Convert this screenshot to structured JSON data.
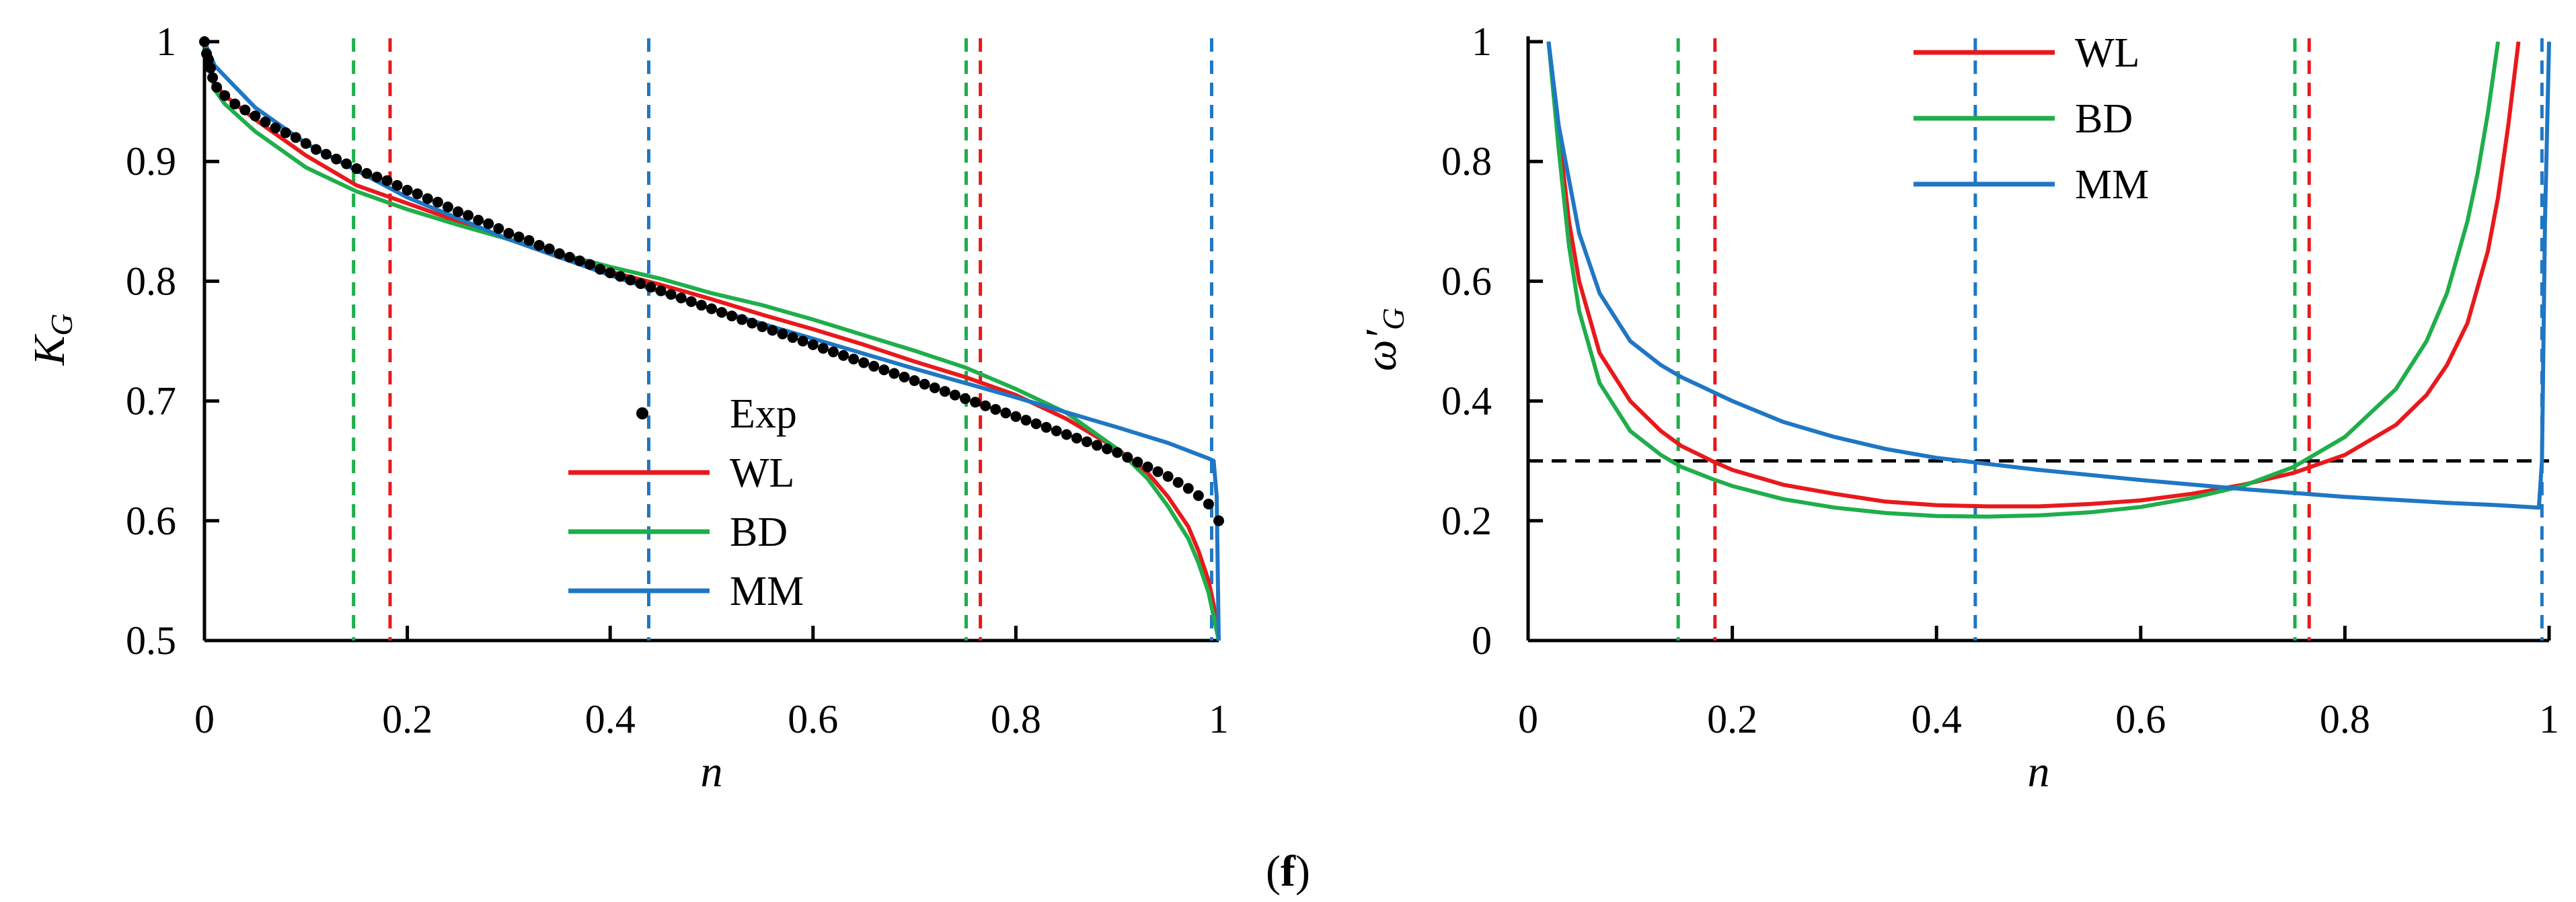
{
  "chart_data": [
    {
      "id": "left",
      "type": "line",
      "xlabel": "n",
      "ylabel": "K",
      "ylabel_sub": "G",
      "xlim": [
        0,
        1
      ],
      "ylim": [
        0.5,
        1
      ],
      "xticks": [
        "0",
        "0.2",
        "0.4",
        "0.6",
        "0.8",
        "1"
      ],
      "yticks": [
        "0.5",
        "0.6",
        "0.7",
        "0.8",
        "0.9",
        "1"
      ],
      "legend": [
        "Exp",
        "WL",
        "BD",
        "MM"
      ],
      "series": [
        {
          "name": "WL",
          "color": "#e8191c",
          "x": [
            0,
            0.01,
            0.02,
            0.05,
            0.1,
            0.15,
            0.2,
            0.25,
            0.3,
            0.35,
            0.4,
            0.45,
            0.5,
            0.55,
            0.6,
            0.65,
            0.7,
            0.75,
            0.8,
            0.85,
            0.9,
            0.93,
            0.95,
            0.97,
            0.98,
            0.99,
            0.995,
            1.0
          ],
          "y": [
            1.0,
            0.965,
            0.955,
            0.935,
            0.905,
            0.88,
            0.865,
            0.85,
            0.835,
            0.82,
            0.808,
            0.797,
            0.785,
            0.772,
            0.76,
            0.747,
            0.733,
            0.72,
            0.705,
            0.685,
            0.66,
            0.64,
            0.62,
            0.595,
            0.575,
            0.55,
            0.53,
            0.5
          ]
        },
        {
          "name": "BD",
          "color": "#1fae4b",
          "x": [
            0,
            0.01,
            0.02,
            0.05,
            0.1,
            0.15,
            0.2,
            0.25,
            0.3,
            0.35,
            0.4,
            0.45,
            0.5,
            0.55,
            0.6,
            0.65,
            0.7,
            0.75,
            0.8,
            0.85,
            0.9,
            0.93,
            0.95,
            0.97,
            0.98,
            0.99,
            0.995,
            1.0
          ],
          "y": [
            1.0,
            0.96,
            0.948,
            0.925,
            0.895,
            0.875,
            0.86,
            0.847,
            0.835,
            0.823,
            0.812,
            0.802,
            0.79,
            0.78,
            0.768,
            0.755,
            0.742,
            0.728,
            0.71,
            0.69,
            0.66,
            0.635,
            0.612,
            0.585,
            0.565,
            0.54,
            0.52,
            0.5
          ]
        },
        {
          "name": "MM",
          "color": "#1f77c4",
          "x": [
            0,
            0.01,
            0.05,
            0.1,
            0.2,
            0.3,
            0.4,
            0.5,
            0.6,
            0.7,
            0.8,
            0.9,
            0.95,
            0.99,
            0.995,
            0.998,
            1.0
          ],
          "y": [
            1.0,
            0.98,
            0.945,
            0.915,
            0.87,
            0.835,
            0.805,
            0.777,
            0.752,
            0.727,
            0.703,
            0.678,
            0.665,
            0.652,
            0.65,
            0.62,
            0.5
          ]
        },
        {
          "name": "Exp",
          "color": "#000000",
          "marker": "dot",
          "x": [
            0,
            0.002,
            0.004,
            0.006,
            0.008,
            0.012,
            0.02,
            0.03,
            0.04,
            0.05,
            0.06,
            0.07,
            0.08,
            0.09,
            0.1,
            0.11,
            0.12,
            0.13,
            0.14,
            0.15,
            0.16,
            0.17,
            0.18,
            0.19,
            0.2,
            0.21,
            0.22,
            0.23,
            0.24,
            0.25,
            0.26,
            0.27,
            0.28,
            0.29,
            0.3,
            0.31,
            0.32,
            0.33,
            0.34,
            0.35,
            0.36,
            0.37,
            0.38,
            0.39,
            0.4,
            0.41,
            0.42,
            0.43,
            0.44,
            0.45,
            0.46,
            0.47,
            0.48,
            0.49,
            0.5,
            0.51,
            0.52,
            0.53,
            0.54,
            0.55,
            0.56,
            0.57,
            0.58,
            0.59,
            0.6,
            0.61,
            0.62,
            0.63,
            0.64,
            0.65,
            0.66,
            0.67,
            0.68,
            0.69,
            0.7,
            0.71,
            0.72,
            0.73,
            0.74,
            0.75,
            0.76,
            0.77,
            0.78,
            0.79,
            0.8,
            0.81,
            0.82,
            0.83,
            0.84,
            0.85,
            0.86,
            0.87,
            0.88,
            0.89,
            0.9,
            0.91,
            0.92,
            0.93,
            0.94,
            0.95,
            0.96,
            0.97,
            0.98,
            0.99,
            1.0
          ],
          "y": [
            1.0,
            0.99,
            0.985,
            0.978,
            0.97,
            0.962,
            0.955,
            0.948,
            0.943,
            0.938,
            0.933,
            0.928,
            0.924,
            0.92,
            0.915,
            0.91,
            0.906,
            0.902,
            0.898,
            0.894,
            0.89,
            0.887,
            0.884,
            0.88,
            0.876,
            0.873,
            0.869,
            0.866,
            0.862,
            0.858,
            0.855,
            0.851,
            0.848,
            0.844,
            0.84,
            0.837,
            0.834,
            0.83,
            0.827,
            0.823,
            0.82,
            0.817,
            0.814,
            0.81,
            0.807,
            0.804,
            0.801,
            0.798,
            0.795,
            0.792,
            0.789,
            0.786,
            0.783,
            0.78,
            0.777,
            0.774,
            0.771,
            0.768,
            0.765,
            0.762,
            0.759,
            0.756,
            0.753,
            0.75,
            0.747,
            0.744,
            0.741,
            0.738,
            0.735,
            0.732,
            0.729,
            0.726,
            0.723,
            0.72,
            0.717,
            0.714,
            0.711,
            0.708,
            0.705,
            0.702,
            0.699,
            0.696,
            0.693,
            0.69,
            0.687,
            0.684,
            0.681,
            0.678,
            0.675,
            0.672,
            0.669,
            0.666,
            0.663,
            0.66,
            0.657,
            0.653,
            0.649,
            0.645,
            0.641,
            0.637,
            0.632,
            0.627,
            0.621,
            0.614,
            0.6
          ]
        }
      ],
      "vlines": [
        {
          "x": 0.147,
          "color": "#1fae4b"
        },
        {
          "x": 0.183,
          "color": "#e8191c"
        },
        {
          "x": 0.438,
          "color": "#1f77c4"
        },
        {
          "x": 0.751,
          "color": "#1fae4b"
        },
        {
          "x": 0.765,
          "color": "#e8191c"
        },
        {
          "x": 0.993,
          "color": "#1f77c4"
        }
      ],
      "hlines": []
    },
    {
      "id": "right",
      "type": "line",
      "xlabel": "n",
      "ylabel": "ω′",
      "ylabel_sub": "G",
      "xlim": [
        0,
        1
      ],
      "ylim": [
        0,
        1
      ],
      "xticks": [
        "0",
        "0.2",
        "0.4",
        "0.6",
        "0.8",
        "1"
      ],
      "yticks": [
        "0",
        "0.2",
        "0.4",
        "0.6",
        "0.8",
        "1"
      ],
      "legend": [
        "WL",
        "BD",
        "MM"
      ],
      "series": [
        {
          "name": "WL",
          "color": "#e8191c",
          "x": [
            0.02,
            0.03,
            0.04,
            0.05,
            0.07,
            0.1,
            0.13,
            0.15,
            0.18,
            0.2,
            0.25,
            0.3,
            0.35,
            0.4,
            0.45,
            0.5,
            0.55,
            0.6,
            0.65,
            0.7,
            0.75,
            0.8,
            0.85,
            0.88,
            0.9,
            0.92,
            0.94,
            0.95,
            0.96,
            0.97
          ],
          "y": [
            1.0,
            0.85,
            0.7,
            0.6,
            0.48,
            0.4,
            0.35,
            0.325,
            0.3,
            0.285,
            0.26,
            0.245,
            0.232,
            0.226,
            0.224,
            0.224,
            0.228,
            0.234,
            0.245,
            0.26,
            0.28,
            0.31,
            0.36,
            0.41,
            0.46,
            0.53,
            0.65,
            0.74,
            0.86,
            1.0
          ]
        },
        {
          "name": "BD",
          "color": "#1fae4b",
          "x": [
            0.02,
            0.03,
            0.04,
            0.05,
            0.07,
            0.1,
            0.13,
            0.15,
            0.18,
            0.2,
            0.25,
            0.3,
            0.35,
            0.4,
            0.45,
            0.5,
            0.55,
            0.6,
            0.65,
            0.7,
            0.75,
            0.8,
            0.85,
            0.88,
            0.9,
            0.92,
            0.93,
            0.94,
            0.95
          ],
          "y": [
            1.0,
            0.82,
            0.66,
            0.55,
            0.43,
            0.35,
            0.31,
            0.29,
            0.27,
            0.258,
            0.236,
            0.222,
            0.213,
            0.208,
            0.207,
            0.209,
            0.214,
            0.223,
            0.238,
            0.258,
            0.29,
            0.34,
            0.42,
            0.5,
            0.58,
            0.7,
            0.78,
            0.88,
            1.0
          ]
        },
        {
          "name": "MM",
          "color": "#1f77c4",
          "x": [
            0.02,
            0.03,
            0.05,
            0.07,
            0.1,
            0.13,
            0.15,
            0.2,
            0.25,
            0.3,
            0.35,
            0.4,
            0.45,
            0.5,
            0.6,
            0.7,
            0.8,
            0.9,
            0.95,
            0.99,
            0.993,
            0.996,
            1.0
          ],
          "y": [
            1.0,
            0.86,
            0.68,
            0.58,
            0.5,
            0.46,
            0.44,
            0.4,
            0.365,
            0.34,
            0.32,
            0.305,
            0.295,
            0.285,
            0.268,
            0.253,
            0.24,
            0.23,
            0.226,
            0.222,
            0.3,
            0.7,
            1.0
          ]
        }
      ],
      "vlines": [
        {
          "x": 0.147,
          "color": "#1fae4b"
        },
        {
          "x": 0.183,
          "color": "#e8191c"
        },
        {
          "x": 0.438,
          "color": "#1f77c4"
        },
        {
          "x": 0.751,
          "color": "#1fae4b"
        },
        {
          "x": 0.765,
          "color": "#e8191c"
        },
        {
          "x": 0.993,
          "color": "#1f77c4"
        }
      ],
      "hlines": [
        {
          "y": 0.3,
          "color": "#000000"
        }
      ]
    }
  ],
  "caption": "(f)",
  "caption_letter": "f"
}
